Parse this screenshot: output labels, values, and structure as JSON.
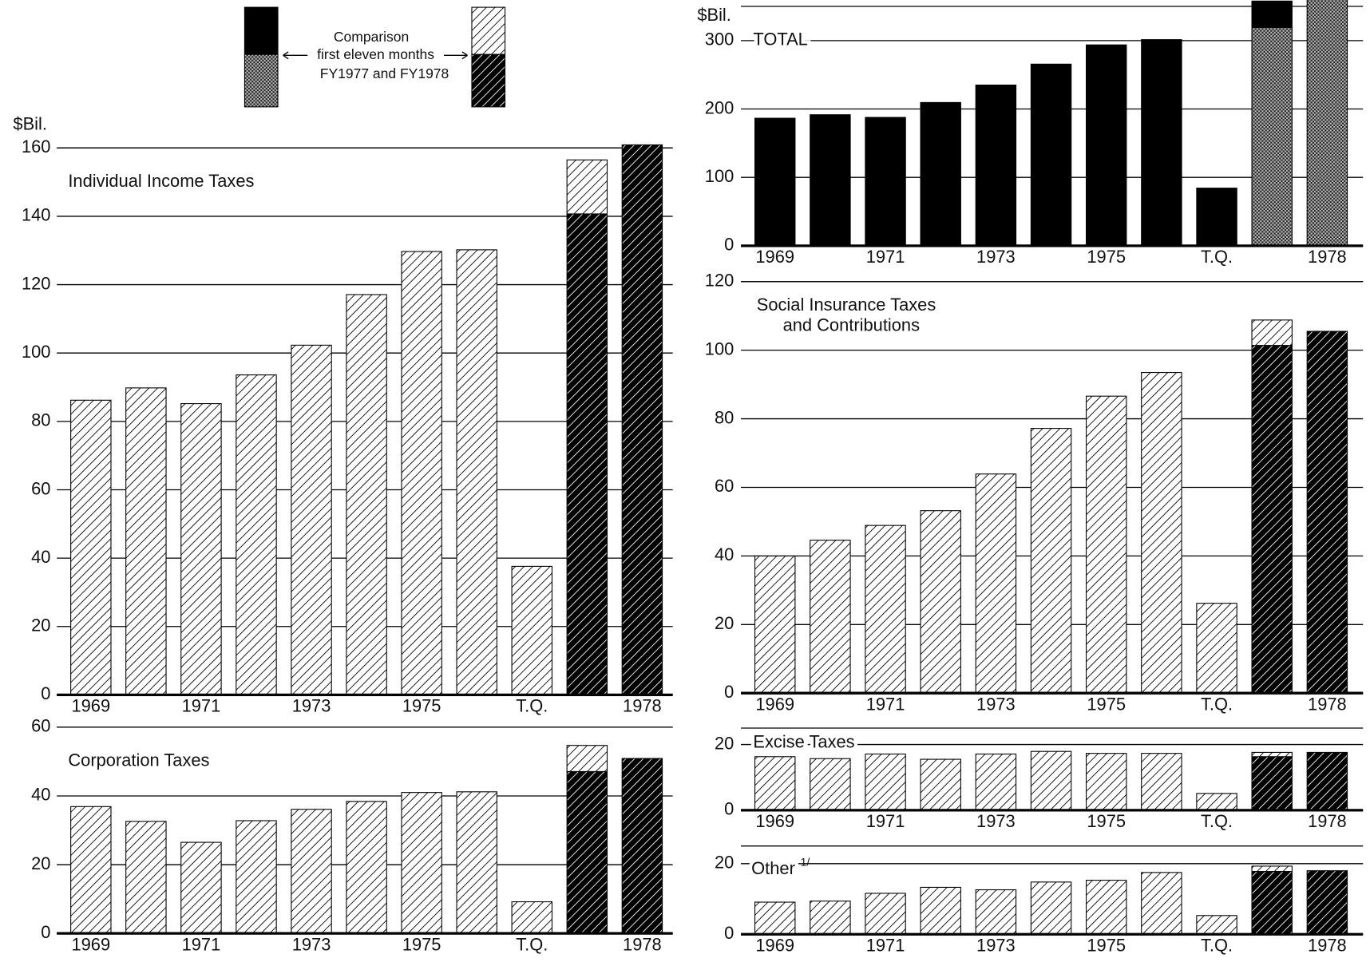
{
  "legend": {
    "lines": [
      "Comparison",
      "first eleven months",
      "FY1977 and FY1978"
    ]
  },
  "chart_data": [
    {
      "type": "bar",
      "stacked": true,
      "title": "Individual Income Taxes",
      "ylabel": "$Bil.",
      "categories": [
        "1969",
        null,
        "1971",
        null,
        "1973",
        null,
        "1975",
        null,
        "T.Q.",
        null,
        "1978"
      ],
      "series": [
        {
          "pattern": "hatch-dark",
          "values": [
            null,
            null,
            null,
            null,
            null,
            null,
            null,
            null,
            null,
            140.7,
            160.9
          ]
        },
        {
          "pattern": "hatch-light",
          "values": [
            86.2,
            89.8,
            85.2,
            93.6,
            102.3,
            117.1,
            129.7,
            130.2,
            37.6,
            15.8,
            null
          ]
        }
      ],
      "ylim": [
        0,
        160
      ],
      "yticks": [
        0,
        20,
        40,
        60,
        80,
        100,
        120,
        140,
        160
      ],
      "grid": true
    },
    {
      "type": "bar",
      "stacked": true,
      "title": "Corporation Taxes",
      "categories": [
        "1969",
        null,
        "1971",
        null,
        "1973",
        null,
        "1975",
        null,
        "T.Q.",
        null,
        "1978"
      ],
      "series": [
        {
          "pattern": "hatch-dark",
          "values": [
            null,
            null,
            null,
            null,
            null,
            null,
            null,
            null,
            null,
            47.1,
            50.9
          ]
        },
        {
          "pattern": "hatch-light",
          "values": [
            36.9,
            32.6,
            26.5,
            32.8,
            36.1,
            38.4,
            41.0,
            41.2,
            9.2,
            7.6,
            null
          ]
        }
      ],
      "ylim": [
        0,
        60
      ],
      "yticks": [
        0,
        20,
        40,
        60
      ],
      "grid": true
    },
    {
      "type": "bar",
      "stacked": true,
      "title": "TOTAL",
      "ylabel": "$Bil.",
      "categories": [
        "1969",
        null,
        "1971",
        null,
        "1973",
        null,
        "1975",
        null,
        "T.Q.",
        null,
        "1978"
      ],
      "series": [
        {
          "pattern": "crosshatch",
          "values": [
            null,
            null,
            null,
            null,
            null,
            null,
            null,
            null,
            null,
            319.3,
            366
          ]
        },
        {
          "pattern": "solid",
          "values": [
            186.5,
            191.6,
            187.7,
            209.5,
            235.0,
            265.6,
            293.7,
            301.4,
            84.3,
            38.5,
            null
          ]
        }
      ],
      "ylim": [
        0,
        350
      ],
      "yticks": [
        0,
        100,
        200,
        300
      ],
      "grid": true
    },
    {
      "type": "bar",
      "stacked": true,
      "title": [
        "Social Insurance Taxes",
        "and Contributions"
      ],
      "categories": [
        "1969",
        null,
        "1971",
        null,
        "1973",
        null,
        "1975",
        null,
        "T.Q.",
        null,
        "1978"
      ],
      "series": [
        {
          "pattern": "hatch-dark",
          "values": [
            null,
            null,
            null,
            null,
            null,
            null,
            null,
            null,
            null,
            101.4,
            105.5
          ]
        },
        {
          "pattern": "hatch-light",
          "values": [
            40.0,
            44.6,
            48.9,
            53.2,
            63.9,
            77.2,
            86.6,
            93.5,
            26.2,
            7.4,
            null
          ]
        }
      ],
      "ylim": [
        0,
        120
      ],
      "yticks": [
        0,
        20,
        40,
        60,
        80,
        100,
        120
      ],
      "grid": true
    },
    {
      "type": "bar",
      "stacked": true,
      "title": "Excise Taxes",
      "categories": [
        "1969",
        null,
        "1971",
        null,
        "1973",
        null,
        "1975",
        null,
        "T.Q.",
        null,
        "1978"
      ],
      "series": [
        {
          "pattern": "hatch-dark",
          "values": [
            null,
            null,
            null,
            null,
            null,
            null,
            null,
            null,
            null,
            16.3,
            17.6
          ]
        },
        {
          "pattern": "hatch-light",
          "values": [
            16.3,
            15.7,
            17.1,
            15.5,
            17.1,
            17.9,
            17.3,
            17.3,
            5.1,
            1.3,
            null
          ]
        }
      ],
      "ylim": [
        0,
        25
      ],
      "yticks": [
        0,
        20
      ],
      "grid": true
    },
    {
      "type": "bar",
      "stacked": true,
      "title": "Other",
      "title_note": "1/",
      "categories": [
        "1969",
        null,
        "1971",
        null,
        "1973",
        null,
        "1975",
        null,
        "T.Q.",
        null,
        "1978"
      ],
      "series": [
        {
          "pattern": "hatch-dark",
          "values": [
            null,
            null,
            null,
            null,
            null,
            null,
            null,
            null,
            null,
            17.8,
            18.0
          ]
        },
        {
          "pattern": "hatch-light",
          "values": [
            9.1,
            9.4,
            11.6,
            13.3,
            12.6,
            14.8,
            15.3,
            17.5,
            5.3,
            1.5,
            null
          ]
        }
      ],
      "ylim": [
        0,
        25
      ],
      "yticks": [
        0,
        20
      ],
      "grid": true
    }
  ]
}
